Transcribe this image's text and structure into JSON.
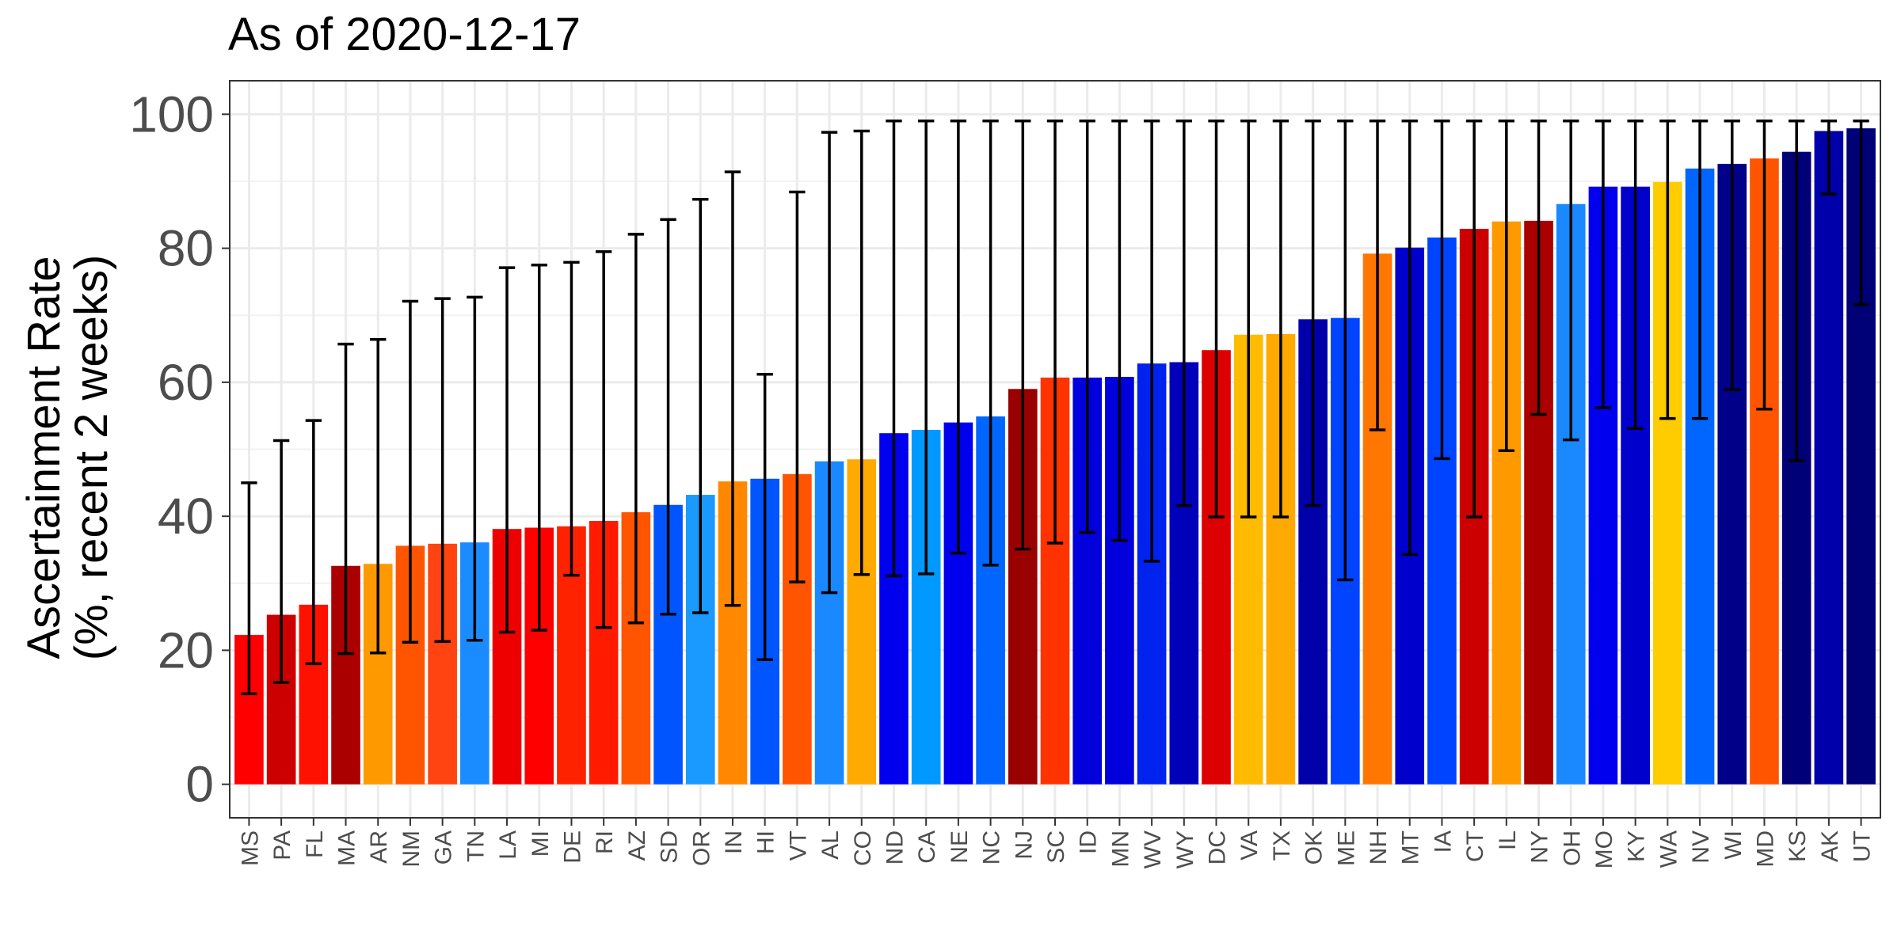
{
  "chart_data": {
    "type": "bar",
    "title": "As of 2020-12-17",
    "ylabel_lines": [
      "Ascertainment Rate",
      "(%, recent 2 weeks)"
    ],
    "xlabel": "",
    "ylim": [
      -5,
      105
    ],
    "yticks": [
      0,
      20,
      40,
      60,
      80,
      100
    ],
    "grid": true,
    "legend": "none",
    "categories": [
      "MS",
      "PA",
      "FL",
      "MA",
      "AR",
      "NM",
      "GA",
      "TN",
      "LA",
      "MI",
      "DE",
      "RI",
      "AZ",
      "SD",
      "OR",
      "IN",
      "HI",
      "VT",
      "AL",
      "CO",
      "ND",
      "CA",
      "NE",
      "NC",
      "NJ",
      "SC",
      "ID",
      "MN",
      "WV",
      "WY",
      "DC",
      "VA",
      "TX",
      "OK",
      "ME",
      "NH",
      "MT",
      "IA",
      "CT",
      "IL",
      "NY",
      "OH",
      "MO",
      "KY",
      "WA",
      "NV",
      "WI",
      "MD",
      "KS",
      "AK",
      "UT"
    ],
    "values": [
      22.3,
      25.3,
      26.8,
      32.6,
      32.9,
      35.6,
      35.9,
      36.1,
      38.1,
      38.3,
      38.5,
      39.3,
      40.6,
      41.7,
      43.2,
      45.2,
      45.6,
      46.3,
      48.2,
      48.5,
      52.4,
      52.9,
      54.0,
      54.9,
      59.0,
      60.7,
      60.7,
      60.8,
      62.8,
      63.0,
      64.8,
      67.1,
      67.2,
      69.4,
      69.6,
      79.2,
      80.1,
      81.6,
      82.9,
      84.0,
      84.1,
      86.6,
      89.2,
      89.2,
      89.9,
      91.9,
      92.6,
      93.4,
      94.4,
      97.5,
      97.9
    ],
    "lower": [
      13.5,
      15.2,
      18.0,
      19.5,
      19.6,
      21.2,
      21.3,
      21.5,
      22.7,
      23.0,
      31.2,
      23.4,
      24.1,
      25.4,
      25.6,
      26.7,
      18.6,
      30.2,
      28.6,
      31.3,
      31.1,
      31.4,
      34.5,
      32.7,
      35.1,
      36.0,
      37.6,
      36.4,
      33.3,
      41.6,
      39.9,
      39.9,
      39.9,
      41.6,
      30.5,
      52.9,
      34.3,
      48.6,
      39.9,
      49.8,
      55.2,
      51.4,
      56.2,
      53.1,
      54.6,
      54.6,
      58.9,
      56.0,
      48.3,
      88.1,
      71.6
    ],
    "upper": [
      45.0,
      51.3,
      54.3,
      65.7,
      66.4,
      72.1,
      72.5,
      72.7,
      77.1,
      77.5,
      77.9,
      79.5,
      82.1,
      84.3,
      87.3,
      91.4,
      61.2,
      88.4,
      97.3,
      97.5,
      99.0,
      99.0,
      99.0,
      99.0,
      99.0,
      99.0,
      99.0,
      99.0,
      99.0,
      99.0,
      99.0,
      99.0,
      99.0,
      99.0,
      99.0,
      99.0,
      99.0,
      99.0,
      99.0,
      99.0,
      99.0,
      99.0,
      99.0,
      99.0,
      99.0,
      99.0,
      99.0,
      99.0,
      99.0,
      99.0,
      99.0
    ],
    "colors": [
      "#ff0000",
      "#cc0000",
      "#ff1100",
      "#aa0000",
      "#ff9900",
      "#ff5500",
      "#ff4411",
      "#1a8cff",
      "#ee0000",
      "#ff0000",
      "#ff2200",
      "#ff1a00",
      "#ff5500",
      "#0055ff",
      "#1a99ff",
      "#ff8800",
      "#0055ff",
      "#ff5500",
      "#1a88ff",
      "#ffaa00",
      "#0000ee",
      "#0099ff",
      "#0000ee",
      "#0066ff",
      "#990000",
      "#ff3300",
      "#0000dd",
      "#0000dd",
      "#0022ee",
      "#0000bb",
      "#dd0000",
      "#ffbb00",
      "#ffaa00",
      "#0000aa",
      "#0044ff",
      "#ff7700",
      "#0000cc",
      "#0044ff",
      "#cc0000",
      "#ff9900",
      "#aa0000",
      "#1a88ff",
      "#0000ee",
      "#0000cc",
      "#ffcc00",
      "#0066ff",
      "#000088",
      "#ff5500",
      "#000077",
      "#0000aa",
      "#000077"
    ]
  }
}
